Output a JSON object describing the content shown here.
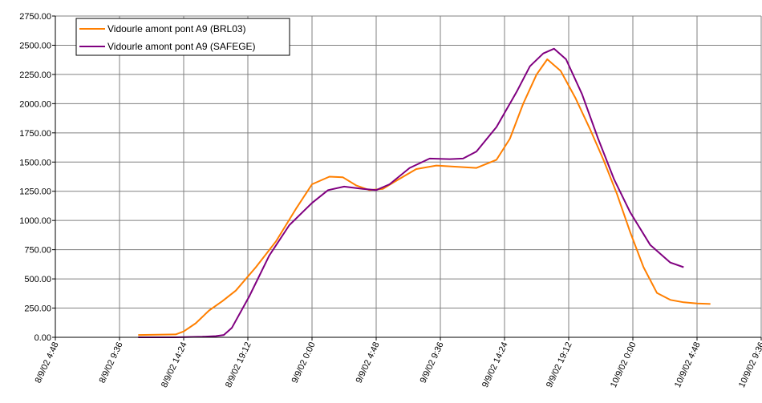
{
  "chart_data": {
    "type": "line",
    "title": "",
    "xlabel": "",
    "ylabel": "",
    "ylim": [
      0,
      2750
    ],
    "yticks": [
      "0.00",
      "250.00",
      "500.00",
      "750.00",
      "1000.00",
      "1250.00",
      "1500.00",
      "1750.00",
      "2000.00",
      "2250.00",
      "2500.00",
      "2750.00"
    ],
    "xlim_hours": [
      0,
      52.8
    ],
    "xticks": [
      "8/9/02 4:48",
      "8/9/02 9:36",
      "8/9/02 14:24",
      "8/9/02 19:12",
      "9/9/02 0:00",
      "9/9/02 4:48",
      "9/9/02 9:36",
      "9/9/02 14:24",
      "9/9/02 19:12",
      "10/9/02 0:00",
      "10/9/02 4:48",
      "10/9/02 9:36"
    ],
    "grid": true,
    "legend_position": "top-left",
    "series": [
      {
        "name": "Vidourle amont pont A9 (BRL03)",
        "color": "#FF7F00",
        "x": [
          6.2,
          9.0,
          9.6,
          10.5,
          11.5,
          12.5,
          13.5,
          15.0,
          16.5,
          18.0,
          19.2,
          20.5,
          21.5,
          22.5,
          23.5,
          24.5,
          25.5,
          27.0,
          28.5,
          30.0,
          31.5,
          33.0,
          34.0,
          35.0,
          36.0,
          36.8,
          37.8,
          38.9,
          40.0,
          41.0,
          42.0,
          43.0,
          44.0,
          45.0,
          46.0,
          47.0,
          48.0,
          49.0
        ],
        "y": [
          20,
          25,
          50,
          120,
          230,
          310,
          400,
          600,
          820,
          1100,
          1310,
          1375,
          1370,
          1300,
          1260,
          1270,
          1340,
          1440,
          1470,
          1460,
          1450,
          1520,
          1700,
          2000,
          2250,
          2380,
          2280,
          2050,
          1780,
          1520,
          1230,
          900,
          600,
          380,
          320,
          300,
          290,
          285
        ]
      },
      {
        "name": "Vidourle amont pont A9 (SAFEGE)",
        "color": "#800080",
        "x": [
          6.2,
          9.0,
          11.0,
          12.0,
          12.6,
          13.2,
          14.5,
          16.0,
          17.5,
          19.2,
          20.4,
          21.6,
          23.0,
          24.0,
          25.0,
          26.5,
          28.0,
          29.5,
          30.5,
          31.5,
          33.0,
          34.5,
          35.5,
          36.5,
          37.3,
          38.2,
          39.4,
          40.6,
          41.8,
          43.0,
          44.5,
          46.0,
          47.0
        ],
        "y": [
          0,
          0,
          5,
          10,
          20,
          80,
          350,
          700,
          960,
          1150,
          1260,
          1290,
          1270,
          1260,
          1310,
          1450,
          1530,
          1525,
          1530,
          1590,
          1800,
          2100,
          2320,
          2430,
          2470,
          2380,
          2080,
          1700,
          1350,
          1070,
          790,
          640,
          600
        ]
      }
    ]
  }
}
